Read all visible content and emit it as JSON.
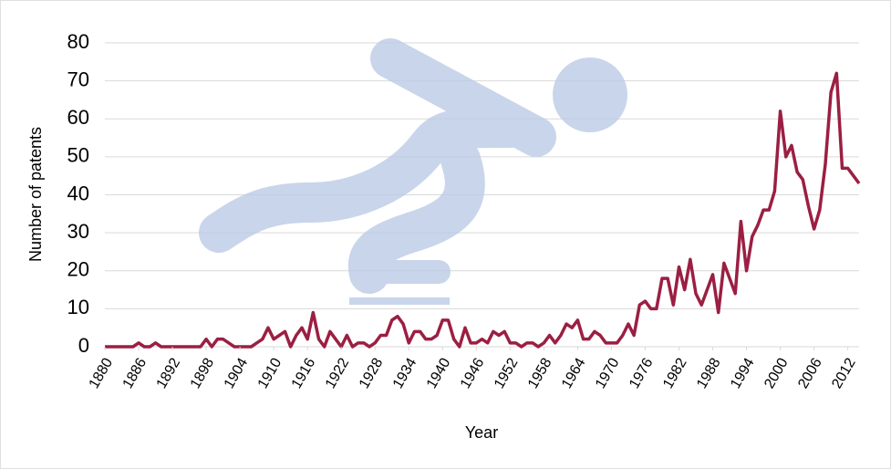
{
  "chart_data": {
    "type": "line",
    "x_label": "Year",
    "y_label": "Number of patents",
    "x": [
      1880,
      1881,
      1882,
      1883,
      1884,
      1885,
      1886,
      1887,
      1888,
      1889,
      1890,
      1891,
      1892,
      1893,
      1894,
      1895,
      1896,
      1897,
      1898,
      1899,
      1900,
      1901,
      1902,
      1903,
      1904,
      1905,
      1906,
      1907,
      1908,
      1909,
      1910,
      1911,
      1912,
      1913,
      1914,
      1915,
      1916,
      1917,
      1918,
      1919,
      1920,
      1921,
      1922,
      1923,
      1924,
      1925,
      1926,
      1927,
      1928,
      1929,
      1930,
      1931,
      1932,
      1933,
      1934,
      1935,
      1936,
      1937,
      1938,
      1939,
      1940,
      1941,
      1942,
      1943,
      1944,
      1945,
      1946,
      1947,
      1948,
      1949,
      1950,
      1951,
      1952,
      1953,
      1954,
      1955,
      1956,
      1957,
      1958,
      1959,
      1960,
      1961,
      1962,
      1963,
      1964,
      1965,
      1966,
      1967,
      1968,
      1969,
      1970,
      1971,
      1972,
      1973,
      1974,
      1975,
      1976,
      1977,
      1978,
      1979,
      1980,
      1981,
      1982,
      1983,
      1984,
      1985,
      1986,
      1987,
      1988,
      1989,
      1990,
      1991,
      1992,
      1993,
      1994,
      1995,
      1996,
      1997,
      1998,
      1999,
      2000,
      2001,
      2002,
      2003,
      2004,
      2005,
      2006,
      2007,
      2008,
      2009,
      2010,
      2011,
      2012,
      2013,
      2014
    ],
    "series": [
      {
        "color": "#9b1f42",
        "values": [
          0,
          0,
          0,
          0,
          0,
          0,
          1,
          0,
          0,
          1,
          0,
          0,
          0,
          0,
          0,
          0,
          0,
          0,
          2,
          0,
          2,
          2,
          1,
          0,
          0,
          0,
          0,
          1,
          2,
          5,
          2,
          3,
          4,
          0,
          3,
          5,
          2,
          9,
          2,
          0,
          4,
          2,
          0,
          3,
          0,
          1,
          1,
          0,
          1,
          3,
          3,
          7,
          8,
          6,
          1,
          4,
          4,
          2,
          2,
          3,
          7,
          7,
          2,
          0,
          5,
          1,
          1,
          2,
          1,
          4,
          3,
          4,
          1,
          1,
          0,
          1,
          1,
          0,
          1,
          3,
          1,
          3,
          6,
          5,
          7,
          2,
          2,
          4,
          3,
          1,
          1,
          1,
          3,
          6,
          3,
          11,
          12,
          10,
          10,
          18,
          18,
          11,
          21,
          15,
          23,
          14,
          11,
          15,
          19,
          9,
          22,
          18,
          14,
          33,
          20,
          29,
          32,
          36,
          36,
          41,
          62,
          50,
          53,
          46,
          44,
          37,
          31,
          36,
          48,
          67,
          72,
          47,
          47,
          45,
          43
        ]
      }
    ],
    "xlim": [
      1880,
      2014
    ],
    "xticks": [
      1880,
      1886,
      1892,
      1898,
      1904,
      1910,
      1916,
      1922,
      1928,
      1934,
      1940,
      1946,
      1952,
      1958,
      1964,
      1970,
      1976,
      1982,
      1988,
      1994,
      2000,
      2006,
      2012
    ],
    "ylim": [
      0,
      80
    ],
    "yticks": [
      0,
      10,
      20,
      30,
      40,
      50,
      60,
      70,
      80
    ],
    "grid": true
  }
}
